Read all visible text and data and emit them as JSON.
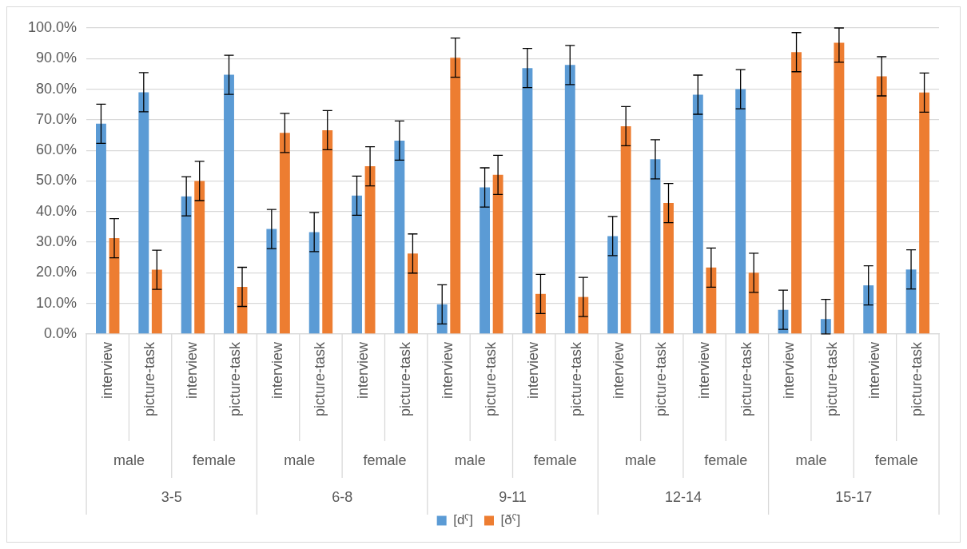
{
  "chart_data": {
    "type": "bar",
    "categories": [
      "interview",
      "picture-task",
      "interview",
      "picture-task",
      "interview",
      "picture-task",
      "interview",
      "picture-task",
      "interview",
      "picture-task",
      "interview",
      "picture-task",
      "interview",
      "picture-task",
      "interview",
      "picture-task",
      "interview",
      "picture-task",
      "interview",
      "picture-task"
    ],
    "annotations": [
      "male",
      "female",
      "male",
      "female",
      "male",
      "female",
      "male",
      "female",
      "male",
      "female",
      "3-5",
      "6-8",
      "9-11",
      "12-14",
      "15-17"
    ],
    "series": [
      {
        "name": "[dˤ]",
        "color": "#5b9bd5",
        "values": [
          68.7,
          79.0,
          45.0,
          84.7,
          34.3,
          33.3,
          45.2,
          63.2,
          9.7,
          47.9,
          86.9,
          87.9,
          32.0,
          57.1,
          78.2,
          80.0,
          7.9,
          4.9,
          15.9,
          21.1
        ],
        "errors": [
          6.4,
          6.4,
          6.4,
          6.4,
          6.4,
          6.4,
          6.4,
          6.4,
          6.4,
          6.4,
          6.4,
          6.4,
          6.4,
          6.4,
          6.4,
          6.4,
          6.4,
          [
            0,
            11.3
          ],
          6.4,
          6.4
        ]
      },
      {
        "name": "[ðˤ]",
        "color": "#ed7d31",
        "values": [
          31.3,
          21.0,
          50.0,
          15.4,
          65.7,
          66.6,
          54.8,
          26.3,
          90.3,
          52.0,
          13.1,
          12.1,
          67.9,
          42.8,
          21.7,
          20.0,
          92.1,
          95.2,
          84.2,
          78.9
        ],
        "errors": [
          6.4,
          6.4,
          6.4,
          6.4,
          6.4,
          6.4,
          6.4,
          6.4,
          6.4,
          6.4,
          6.4,
          6.4,
          6.4,
          6.4,
          6.4,
          6.4,
          6.4,
          [
            88.8,
            100
          ],
          6.4,
          6.4
        ]
      }
    ],
    "ylim": [
      0,
      100
    ],
    "yticks": [
      {
        "value": 0,
        "label": "0.0%"
      },
      {
        "value": 10,
        "label": "10.0%"
      },
      {
        "value": 20,
        "label": "20.0%"
      },
      {
        "value": 30,
        "label": "30.0%"
      },
      {
        "value": 40,
        "label": "40.0%"
      },
      {
        "value": 50,
        "label": "50.0%"
      },
      {
        "value": 60,
        "label": "60.0%"
      },
      {
        "value": 70,
        "label": "70.0%"
      },
      {
        "value": 80,
        "label": "80.0%"
      },
      {
        "value": 90,
        "label": "90.0%"
      },
      {
        "value": 100,
        "label": "100.0%"
      }
    ],
    "grid": "y",
    "legend": "bottom"
  }
}
